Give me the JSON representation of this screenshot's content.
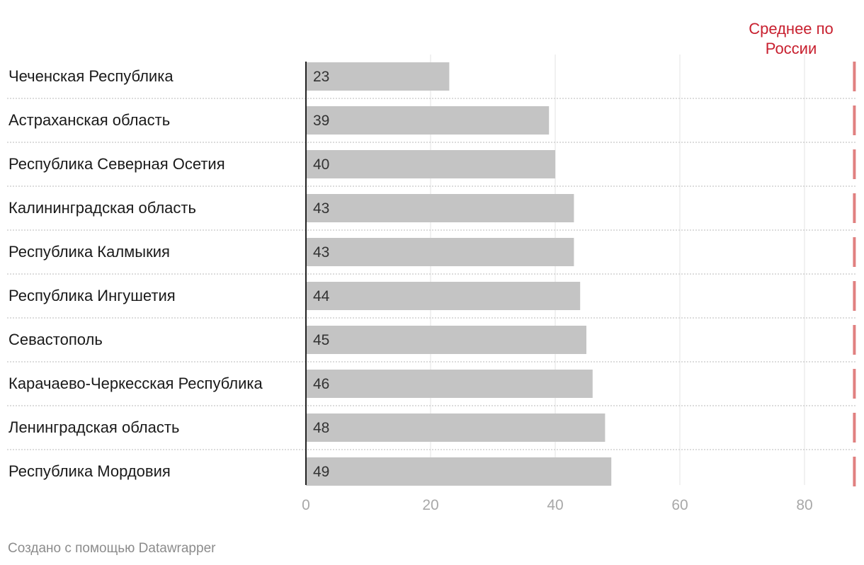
{
  "chart_data": {
    "type": "bar",
    "orientation": "horizontal",
    "categories": [
      "Чеченская Республика",
      "Астраханская область",
      "Республика Северная Осетия",
      "Калининградская область",
      "Республика Калмыкия",
      "Республика Ингушетия",
      "Севастополь",
      "Карачаево-Черкесская Республика",
      "Ленинградская область",
      "Республика Мордовия"
    ],
    "values": [
      23,
      39,
      40,
      43,
      43,
      44,
      45,
      46,
      48,
      49
    ],
    "value_labels": [
      "23",
      "39",
      "40",
      "43",
      "43",
      "44",
      "45",
      "46",
      "48",
      "49"
    ],
    "xlim": [
      0,
      88
    ],
    "x_ticks": [
      0,
      20,
      40,
      60,
      80
    ],
    "x_tick_labels": [
      "0",
      "20",
      "40",
      "60",
      "80"
    ],
    "grid": true,
    "reference_line": {
      "value": 88,
      "label_lines": [
        "Среднее по",
        "России"
      ],
      "color": "#d9534f"
    },
    "colors": {
      "bar": "#c4c4c4",
      "reference": "#c8202f",
      "reference_line": "#e08080",
      "grid": "#e3e3e3",
      "tick_label": "#a8a8a8",
      "category_label": "#1a1a1a",
      "value_label": "#333333"
    }
  },
  "footer": "Создано с помощью Datawrapper"
}
